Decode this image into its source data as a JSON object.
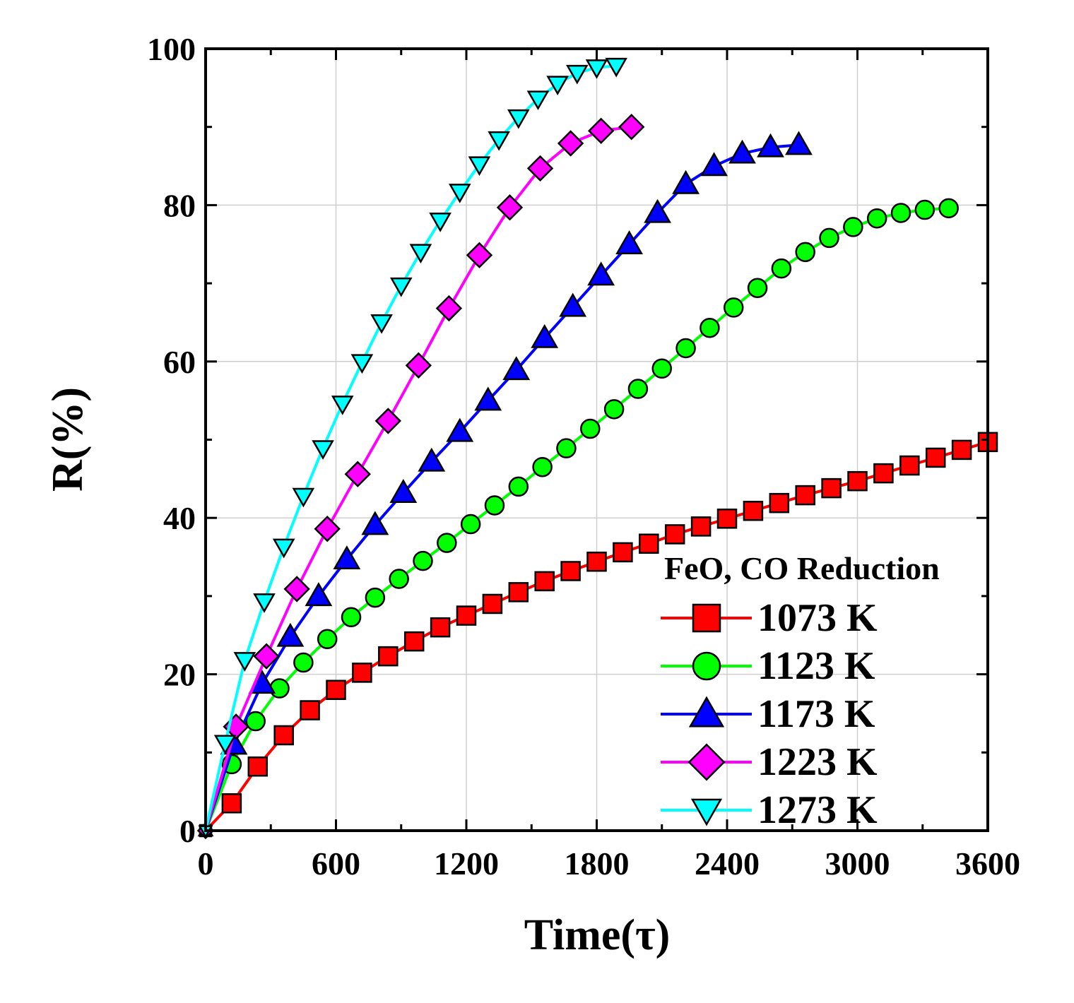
{
  "chart_data": {
    "type": "line",
    "title": "",
    "xlabel": "Time(τ)",
    "ylabel": "R(%)",
    "xlim": [
      0,
      3600
    ],
    "ylim": [
      0,
      100
    ],
    "xticks": [
      "0",
      "600",
      "1200",
      "1800",
      "2400",
      "3000",
      "3600"
    ],
    "yticks": [
      "0",
      "20",
      "40",
      "60",
      "80",
      "100"
    ],
    "grid": true,
    "legend_title": "FeO, CO Reduction",
    "legend_position": "bottom-right",
    "series": [
      {
        "name": "1073 K",
        "color": "#ff0000",
        "marker": "square",
        "x": [
          0,
          120,
          240,
          360,
          480,
          600,
          720,
          840,
          960,
          1080,
          1200,
          1320,
          1440,
          1560,
          1680,
          1800,
          1920,
          2040,
          2160,
          2280,
          2400,
          2520,
          2640,
          2760,
          2880,
          3000,
          3120,
          3240,
          3360,
          3480,
          3600
        ],
        "y": [
          0,
          3.5,
          8.2,
          12.2,
          15.4,
          18.0,
          20.2,
          22.3,
          24.2,
          26.0,
          27.5,
          29.0,
          30.5,
          31.9,
          33.2,
          34.4,
          35.6,
          36.7,
          37.9,
          38.9,
          39.9,
          40.9,
          41.9,
          42.9,
          43.8,
          44.7,
          45.7,
          46.7,
          47.7,
          48.7,
          49.7
        ]
      },
      {
        "name": "1123 K",
        "color": "#00ff00",
        "marker": "circle",
        "x": [
          0,
          120,
          230,
          340,
          450,
          560,
          670,
          780,
          890,
          1000,
          1110,
          1220,
          1330,
          1440,
          1550,
          1660,
          1770,
          1880,
          1990,
          2100,
          2210,
          2320,
          2430,
          2540,
          2650,
          2760,
          2870,
          2980,
          3090,
          3200,
          3310,
          3420
        ],
        "y": [
          0,
          8.5,
          14.0,
          18.2,
          21.5,
          24.5,
          27.3,
          29.8,
          32.2,
          34.5,
          36.8,
          39.2,
          41.6,
          44.0,
          46.5,
          48.9,
          51.4,
          53.9,
          56.5,
          59.1,
          61.7,
          64.3,
          66.9,
          69.4,
          71.9,
          74.0,
          75.8,
          77.2,
          78.3,
          79.0,
          79.4,
          79.6
        ]
      },
      {
        "name": "1173 K",
        "color": "#0000ff",
        "marker": "triangle-up",
        "x": [
          0,
          130,
          260,
          390,
          520,
          650,
          780,
          910,
          1040,
          1170,
          1300,
          1430,
          1560,
          1690,
          1820,
          1950,
          2080,
          2210,
          2340,
          2470,
          2600,
          2730
        ],
        "y": [
          0,
          11.0,
          18.8,
          24.8,
          30.0,
          34.7,
          39.1,
          43.2,
          47.2,
          51.0,
          55.0,
          58.9,
          63.0,
          67.0,
          71.0,
          75.0,
          79.0,
          82.7,
          85.0,
          86.6,
          87.4,
          87.7
        ]
      },
      {
        "name": "1223 K",
        "color": "#ff00ff",
        "marker": "diamond",
        "x": [
          0,
          140,
          280,
          420,
          560,
          700,
          840,
          980,
          1120,
          1260,
          1400,
          1540,
          1680,
          1820,
          1960
        ],
        "y": [
          0,
          13.3,
          22.3,
          30.9,
          38.6,
          45.6,
          52.4,
          59.5,
          66.8,
          73.6,
          79.7,
          84.7,
          87.9,
          89.5,
          90.0
        ]
      },
      {
        "name": "1273 K",
        "color": "#00ffff",
        "marker": "triangle-down",
        "x": [
          0,
          90,
          180,
          270,
          360,
          450,
          540,
          630,
          720,
          810,
          900,
          990,
          1080,
          1170,
          1260,
          1350,
          1440,
          1530,
          1620,
          1710,
          1800,
          1890
        ],
        "y": [
          0,
          11.2,
          21.8,
          29.3,
          36.3,
          42.8,
          48.9,
          54.6,
          59.9,
          65.0,
          69.7,
          74.0,
          78.0,
          81.7,
          85.2,
          88.4,
          91.2,
          93.6,
          95.5,
          96.9,
          97.6,
          97.8
        ]
      }
    ]
  }
}
